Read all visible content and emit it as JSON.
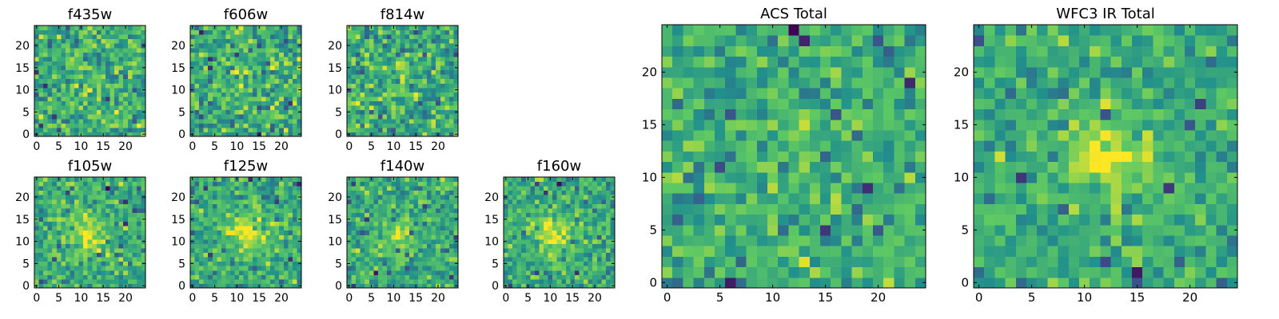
{
  "chart_data": [
    {
      "type": "heatmap",
      "id": "f435w",
      "title": "f435w",
      "rows": 25,
      "cols": 25,
      "xticks": [
        0,
        5,
        10,
        15,
        20
      ],
      "yticks": [
        0,
        5,
        10,
        15,
        20
      ],
      "xlim": [
        -0.5,
        24.5
      ],
      "ylim": [
        -0.5,
        24.5
      ],
      "colormap": [
        "#440154",
        "#3b528b",
        "#21918c",
        "#5ec962",
        "#fde725"
      ],
      "source_peak": {
        "x": 12,
        "y": 11,
        "width": 3.2,
        "amplitude": 0.25
      },
      "noise": 0.5,
      "seed": 11
    },
    {
      "type": "heatmap",
      "id": "f606w",
      "title": "f606w",
      "rows": 25,
      "cols": 25,
      "xticks": [
        0,
        5,
        10,
        15,
        20
      ],
      "yticks": [
        0,
        5,
        10,
        15,
        20
      ],
      "xlim": [
        -0.5,
        24.5
      ],
      "ylim": [
        -0.5,
        24.5
      ],
      "colormap": [
        "#440154",
        "#3b528b",
        "#21918c",
        "#5ec962",
        "#fde725"
      ],
      "source_peak": {
        "x": 12,
        "y": 12,
        "width": 3.2,
        "amplitude": 0.3
      },
      "noise": 0.5,
      "seed": 23
    },
    {
      "type": "heatmap",
      "id": "f814w",
      "title": "f814w",
      "rows": 25,
      "cols": 25,
      "xticks": [
        0,
        5,
        10,
        15,
        20
      ],
      "yticks": [
        0,
        5,
        10,
        15,
        20
      ],
      "xlim": [
        -0.5,
        24.5
      ],
      "ylim": [
        -0.5,
        24.5
      ],
      "colormap": [
        "#440154",
        "#3b528b",
        "#21918c",
        "#5ec962",
        "#fde725"
      ],
      "source_peak": {
        "x": 11,
        "y": 13,
        "width": 3,
        "amplitude": 0.3
      },
      "noise": 0.5,
      "seed": 37
    },
    {
      "type": "heatmap",
      "id": "f105w",
      "title": "f105w",
      "rows": 25,
      "cols": 25,
      "xticks": [
        0,
        5,
        10,
        15,
        20
      ],
      "yticks": [
        0,
        5,
        10,
        15,
        20
      ],
      "xlim": [
        -0.5,
        24.5
      ],
      "ylim": [
        -0.5,
        24.5
      ],
      "colormap": [
        "#440154",
        "#3b528b",
        "#21918c",
        "#5ec962",
        "#fde725"
      ],
      "source_peak": {
        "x": 11,
        "y": 11,
        "width": 3,
        "amplitude": 0.9
      },
      "noise": 0.42,
      "seed": 41
    },
    {
      "type": "heatmap",
      "id": "f125w",
      "title": "f125w",
      "rows": 25,
      "cols": 25,
      "xticks": [
        0,
        5,
        10,
        15,
        20
      ],
      "yticks": [
        0,
        5,
        10,
        15,
        20
      ],
      "xlim": [
        -0.5,
        24.5
      ],
      "ylim": [
        -0.5,
        24.5
      ],
      "colormap": [
        "#440154",
        "#3b528b",
        "#21918c",
        "#5ec962",
        "#fde725"
      ],
      "source_peak": {
        "x": 12,
        "y": 12,
        "width": 3.2,
        "amplitude": 0.9
      },
      "noise": 0.42,
      "seed": 53
    },
    {
      "type": "heatmap",
      "id": "f140w",
      "title": "f140w",
      "rows": 25,
      "cols": 25,
      "xticks": [
        0,
        5,
        10,
        15,
        20
      ],
      "yticks": [
        0,
        5,
        10,
        15,
        20
      ],
      "xlim": [
        -0.5,
        24.5
      ],
      "ylim": [
        -0.5,
        24.5
      ],
      "colormap": [
        "#440154",
        "#3b528b",
        "#21918c",
        "#5ec962",
        "#fde725"
      ],
      "source_peak": {
        "x": 11,
        "y": 11,
        "width": 3,
        "amplitude": 0.7
      },
      "noise": 0.42,
      "seed": 67
    },
    {
      "type": "heatmap",
      "id": "f160w",
      "title": "f160w",
      "rows": 25,
      "cols": 25,
      "xticks": [
        0,
        5,
        10,
        15,
        20
      ],
      "yticks": [
        0,
        5,
        10,
        15,
        20
      ],
      "xlim": [
        -0.5,
        24.5
      ],
      "ylim": [
        -0.5,
        24.5
      ],
      "colormap": [
        "#440154",
        "#3b528b",
        "#21918c",
        "#5ec962",
        "#fde725"
      ],
      "source_peak": {
        "x": 11,
        "y": 12,
        "width": 2.8,
        "amplitude": 0.9
      },
      "noise": 0.42,
      "seed": 79
    },
    {
      "type": "heatmap",
      "id": "acs_total",
      "title": "ACS Total",
      "rows": 25,
      "cols": 25,
      "xticks": [
        0,
        5,
        10,
        15,
        20
      ],
      "yticks": [
        0,
        5,
        10,
        15,
        20
      ],
      "xlim": [
        -0.5,
        24.5
      ],
      "ylim": [
        -0.5,
        24.5
      ],
      "colormap": [
        "#440154",
        "#3b528b",
        "#21918c",
        "#5ec962",
        "#fde725"
      ],
      "source_peak": {
        "x": 12,
        "y": 12,
        "width": 3.5,
        "amplitude": 0.15
      },
      "noise": 0.42,
      "seed": 97
    },
    {
      "type": "heatmap",
      "id": "wfc3_ir_total",
      "title": "WFC3 IR Total",
      "rows": 25,
      "cols": 25,
      "xticks": [
        0,
        5,
        10,
        15,
        20
      ],
      "yticks": [
        0,
        5,
        10,
        15,
        20
      ],
      "xlim": [
        -0.5,
        24.5
      ],
      "ylim": [
        -0.5,
        24.5
      ],
      "colormap": [
        "#440154",
        "#3b528b",
        "#21918c",
        "#5ec962",
        "#fde725"
      ],
      "source_peak": {
        "x": 12,
        "y": 12,
        "width": 2.5,
        "amplitude": 1.1
      },
      "noise": 0.38,
      "seed": 113
    }
  ]
}
